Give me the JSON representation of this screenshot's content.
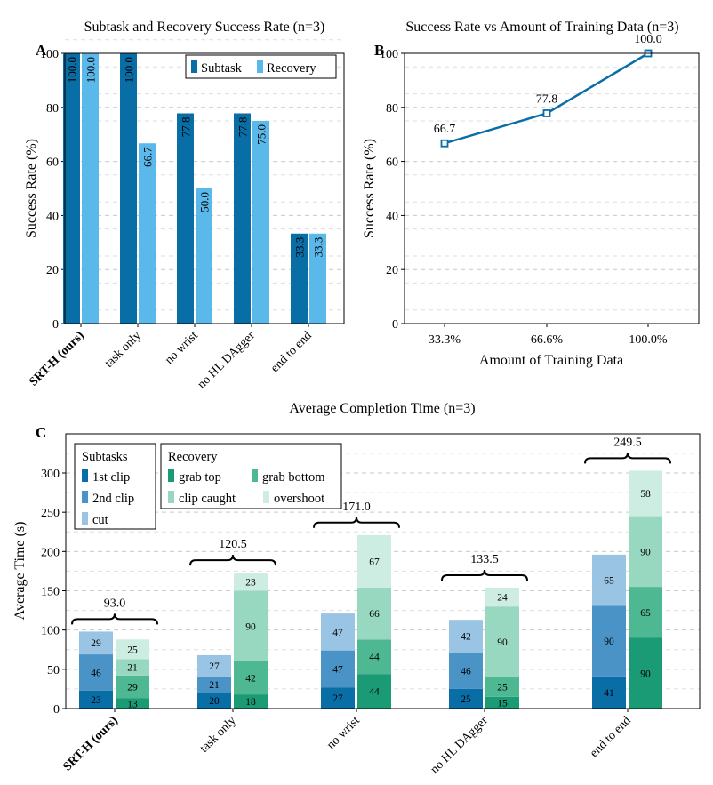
{
  "chart_data": [
    {
      "id": "A",
      "type": "bar",
      "panel_letter": "A",
      "title": "Subtask and Recovery Success Rate (n=3)",
      "ylabel": "Success Rate (%)",
      "xlabel": "",
      "ylim": [
        0,
        100
      ],
      "yticks": [
        0,
        20,
        40,
        60,
        80,
        100
      ],
      "categories": [
        "SRT-H (ours)",
        "task only",
        "no wrist",
        "no HL DAgger",
        "end to end"
      ],
      "bold_category": "SRT-H (ours)",
      "series": [
        {
          "name": "Subtask",
          "color": "#0a6ea6",
          "values": [
            100.0,
            100.0,
            77.8,
            77.8,
            33.3
          ],
          "labels": [
            "100.0",
            "100.0",
            "77.8",
            "77.8",
            "33.3"
          ]
        },
        {
          "name": "Recovery",
          "color": "#5bb8ea",
          "values": [
            100.0,
            66.7,
            50.0,
            75.0,
            33.3
          ],
          "labels": [
            "100.0",
            "66.7",
            "50.0",
            "75.0",
            "33.3"
          ]
        }
      ],
      "legend": "top-right",
      "grid": true
    },
    {
      "id": "B",
      "type": "line",
      "panel_letter": "B",
      "title": "Success Rate vs Amount of Training Data (n=3)",
      "ylabel": "Success Rate (%)",
      "xlabel": "Amount of Training Data",
      "ylim": [
        0,
        100
      ],
      "yticks": [
        0,
        20,
        40,
        60,
        80,
        100
      ],
      "x": [
        "33.3%",
        "66.6%",
        "100.0%"
      ],
      "series": [
        {
          "color": "#0a6ea6",
          "values": [
            66.7,
            77.8,
            100.0
          ],
          "labels": [
            "66.7",
            "77.8",
            "100.0"
          ]
        }
      ],
      "grid": true
    },
    {
      "id": "C",
      "type": "bar",
      "stacked": true,
      "panel_letter": "C",
      "title": "Average Completion Time (n=3)",
      "ylabel": "Average Time (s)",
      "xlabel": "",
      "ylim": [
        0,
        300
      ],
      "yticks": [
        0,
        50,
        100,
        150,
        200,
        250,
        300
      ],
      "categories": [
        "SRT-H (ours)",
        "task only",
        "no wrist",
        "no HL DAgger",
        "end to end"
      ],
      "bold_category": "SRT-H (ours)",
      "subtask_stack": [
        {
          "name": "1st clip",
          "color": "#0a6ea6",
          "values": [
            23,
            20,
            27,
            25,
            41
          ]
        },
        {
          "name": "2nd clip",
          "color": "#4a93c6",
          "values": [
            46,
            21,
            47,
            46,
            90
          ]
        },
        {
          "name": "cut",
          "color": "#9ac4e3",
          "values": [
            29,
            27,
            47,
            42,
            65
          ]
        }
      ],
      "recovery_stack": [
        {
          "name": "grab top",
          "color": "#1a9a75",
          "values": [
            13,
            18,
            44,
            15,
            90
          ]
        },
        {
          "name": "grab bottom",
          "color": "#4eb892",
          "values": [
            29,
            42,
            44,
            25,
            65
          ]
        },
        {
          "name": "clip caught",
          "color": "#98d8c1",
          "values": [
            21,
            90,
            66,
            90,
            90
          ]
        },
        {
          "name": "overshoot",
          "color": "#cdede2",
          "values": [
            25,
            23,
            67,
            24,
            58
          ]
        }
      ],
      "totals": [
        "93.0",
        "120.5",
        "171.0",
        "133.5",
        "249.5"
      ],
      "legend_subtasks_title": "Subtasks",
      "legend_recovery_title": "Recovery",
      "grid": true
    }
  ]
}
